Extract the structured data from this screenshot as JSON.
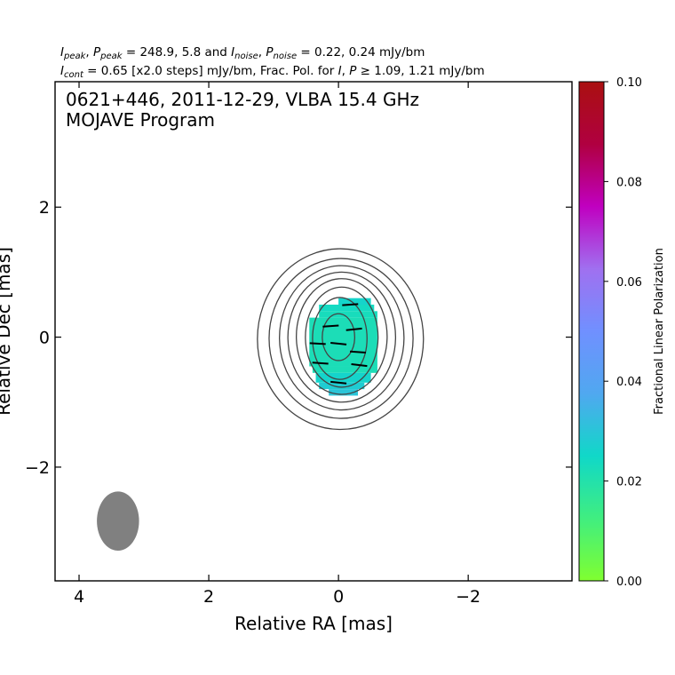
{
  "chart_data": {
    "type": "contour",
    "header": {
      "line1": {
        "I": "I",
        "peak_sub": "peak",
        "P": "P",
        "noise_sub": "noise",
        "peak_mid": " = 248.9, 5.8 and ",
        "noise_tail": " = 0.22, 0.24 mJy/bm"
      },
      "line2": {
        "I": "I",
        "cont_sub": "cont",
        "mid": " = 0.65 [x2.0 steps] mJy/bm, Frac. Pol. for ",
        "I2": "I",
        "comma": ", ",
        "P2": "P",
        "tail": " ≥ 1.09, 1.21 mJy/bm"
      }
    },
    "title": "0621+446, 2011-12-29, VLBA 15.4 GHz",
    "subtitle": "MOJAVE Program",
    "xlabel": "Relative RA [mas]",
    "ylabel": "Relative Dec [mas]",
    "xlim": [
      4.37,
      -3.6
    ],
    "ylim": [
      -3.75,
      3.93
    ],
    "xticks": [
      4,
      2,
      0,
      -2
    ],
    "xtick_labels": [
      "4",
      "2",
      "0",
      "−2"
    ],
    "yticks": [
      2,
      0,
      -2
    ],
    "ytick_labels": [
      "2",
      "0",
      "−2"
    ],
    "colorbar": {
      "label": "Fractional Linear Polarization",
      "range": [
        0,
        0.1
      ],
      "ticks": [
        0,
        0.02,
        0.04,
        0.06,
        0.08,
        0.1
      ],
      "tick_labels": [
        "0.00",
        "0.02",
        "0.04",
        "0.06",
        "0.08",
        "0.10"
      ],
      "colors": [
        "#80ff30",
        "#40ee80",
        "#10d8c8",
        "#50a8f0",
        "#7090ff",
        "#a070f0",
        "#c000c0",
        "#b00040",
        "#aa1010"
      ]
    },
    "contour_color": "#444444",
    "contours": [
      {
        "rx": 1.28,
        "ry": 1.39,
        "cx": -0.03,
        "cy": -0.03
      },
      {
        "rx": 1.11,
        "ry": 1.23,
        "cx": -0.04,
        "cy": -0.02
      },
      {
        "rx": 0.96,
        "ry": 1.11,
        "cx": -0.05,
        "cy": -0.01
      },
      {
        "rx": 0.83,
        "ry": 1.0,
        "cx": -0.05,
        "cy": 0.0
      },
      {
        "rx": 0.7,
        "ry": 0.89,
        "cx": -0.05,
        "cy": 0.01
      },
      {
        "rx": 0.56,
        "ry": 0.77,
        "cx": -0.05,
        "cy": 0.0
      },
      {
        "rx": 0.42,
        "ry": 0.63,
        "cx": -0.02,
        "cy": -0.02
      },
      {
        "rx": 0.25,
        "ry": 0.36,
        "cx": 0.0,
        "cy": 0.0
      }
    ],
    "polarization_pixels": [
      {
        "x": 0.0,
        "y": 0.6,
        "w": 0.5,
        "h": 0.1,
        "frac": 0.026
      },
      {
        "x": 0.3,
        "y": 0.5,
        "w": 0.85,
        "h": 0.1,
        "frac": 0.024
      },
      {
        "x": 0.3,
        "y": 0.4,
        "w": 0.9,
        "h": 0.1,
        "frac": 0.023
      },
      {
        "x": 0.45,
        "y": 0.3,
        "w": 1.05,
        "h": 0.75,
        "frac": 0.022
      },
      {
        "x": 0.4,
        "y": -0.45,
        "w": 1.0,
        "h": 0.1,
        "frac": 0.022
      },
      {
        "x": 0.35,
        "y": -0.55,
        "w": 0.85,
        "h": 0.15,
        "frac": 0.026
      },
      {
        "x": 0.3,
        "y": -0.7,
        "w": 0.7,
        "h": 0.1,
        "frac": 0.028
      },
      {
        "x": 0.15,
        "y": -0.8,
        "w": 0.45,
        "h": 0.1,
        "frac": 0.03
      }
    ],
    "evpa_ticks": [
      {
        "x": -0.18,
        "y": 0.5,
        "angle": -4
      },
      {
        "x": 0.12,
        "y": 0.17,
        "angle": -4
      },
      {
        "x": -0.24,
        "y": 0.12,
        "angle": -6
      },
      {
        "x": 0.32,
        "y": -0.1,
        "angle": 3
      },
      {
        "x": 0.0,
        "y": -0.1,
        "angle": 6
      },
      {
        "x": -0.3,
        "y": -0.23,
        "angle": 4
      },
      {
        "x": 0.28,
        "y": -0.4,
        "angle": 4
      },
      {
        "x": -0.32,
        "y": -0.43,
        "angle": 7
      },
      {
        "x": 0.0,
        "y": -0.7,
        "angle": 6
      }
    ],
    "beam": {
      "x": 3.4,
      "y": -2.83,
      "bmaj": 0.91,
      "bmin": 0.65,
      "color": "#808080"
    }
  }
}
